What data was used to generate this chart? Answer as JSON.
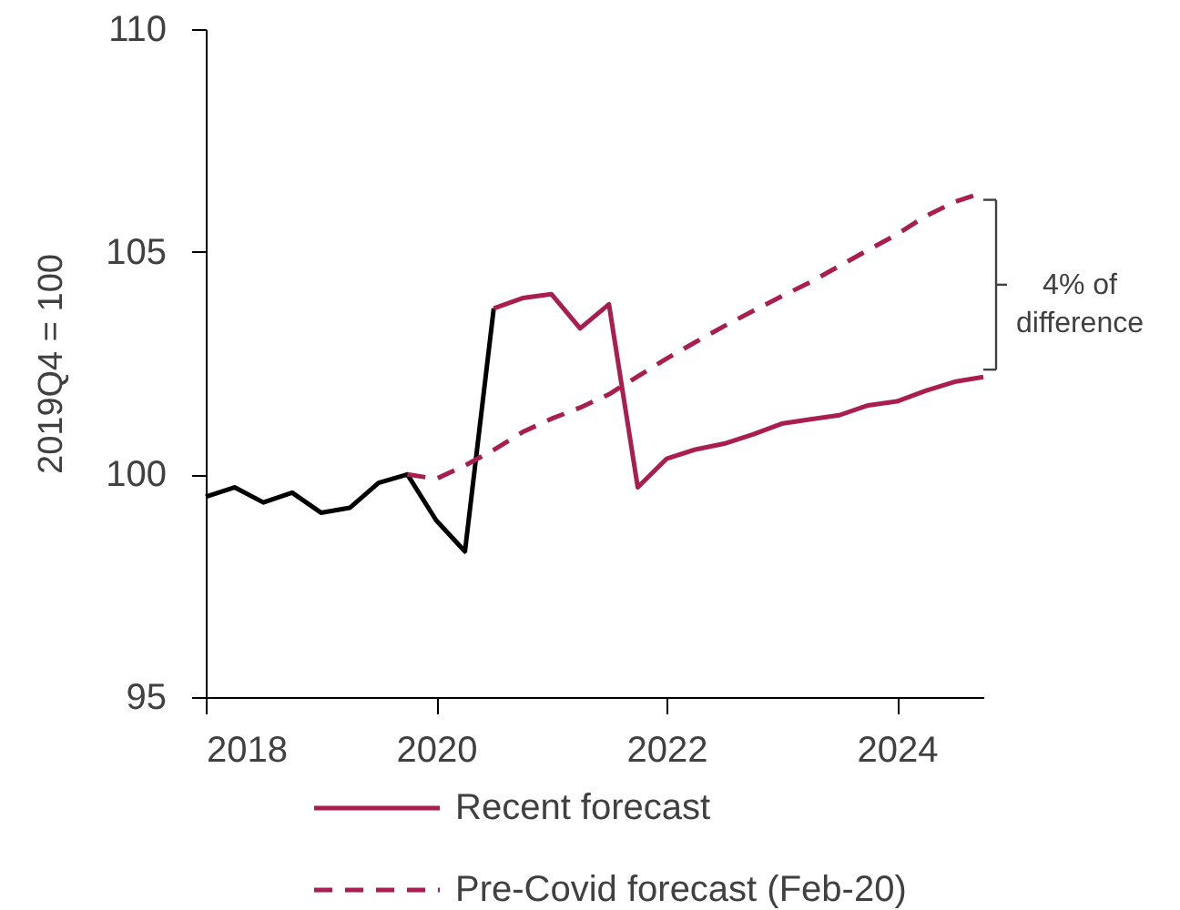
{
  "chart_data": {
    "type": "line",
    "ylabel": "2019Q4 = 100",
    "xlim": [
      2018,
      2024.75
    ],
    "xticks": [
      2018,
      2020,
      2022,
      2024
    ],
    "ylim": [
      95,
      110
    ],
    "yticks": [
      95,
      100,
      105,
      110
    ],
    "series": [
      {
        "color": "#000000",
        "line_style": "solid",
        "x": [
          2018,
          2018.25,
          2018.5,
          2018.75,
          2019,
          2019.25,
          2019.5,
          2019.75,
          2020,
          2020.25,
          2020.5
        ],
        "values": [
          99.5,
          99.71,
          99.37,
          99.59,
          99.14,
          99.25,
          99.81,
          100.0,
          98.97,
          98.27,
          103.73
        ]
      },
      {
        "name": "Recent forecast",
        "color": "#a91d4f",
        "line_style": "solid",
        "x": [
          2020.5,
          2020.75,
          2021,
          2021.25,
          2021.5,
          2021.75,
          2022,
          2022.25,
          2022.5,
          2022.75,
          2023,
          2023.25,
          2023.5,
          2023.75,
          2024,
          2024.25,
          2024.5,
          2024.75
        ],
        "values": [
          103.73,
          103.96,
          104.05,
          103.28,
          103.82,
          99.71,
          100.35,
          100.56,
          100.69,
          100.9,
          101.14,
          101.24,
          101.33,
          101.55,
          101.64,
          101.88,
          102.08,
          102.19
        ]
      },
      {
        "name": "Pre-Covid forecast (Feb-20)",
        "color": "#a91d4f",
        "line_style": "dashed",
        "x": [
          2019.75,
          2020,
          2020.25,
          2020.5,
          2020.75,
          2021,
          2021.25,
          2021.5,
          2021.75,
          2022,
          2022.25,
          2022.5,
          2022.75,
          2023,
          2023.25,
          2023.5,
          2023.75,
          2024,
          2024.25,
          2024.5,
          2024.75
        ],
        "values": [
          100.0,
          99.9,
          100.2,
          100.55,
          100.95,
          101.25,
          101.5,
          101.8,
          102.2,
          102.6,
          102.97,
          103.33,
          103.67,
          104.0,
          104.32,
          104.68,
          105.04,
          105.39,
          105.8,
          106.12,
          106.33
        ]
      }
    ],
    "legend": "bottom",
    "annotations": [
      "4% of difference"
    ]
  }
}
